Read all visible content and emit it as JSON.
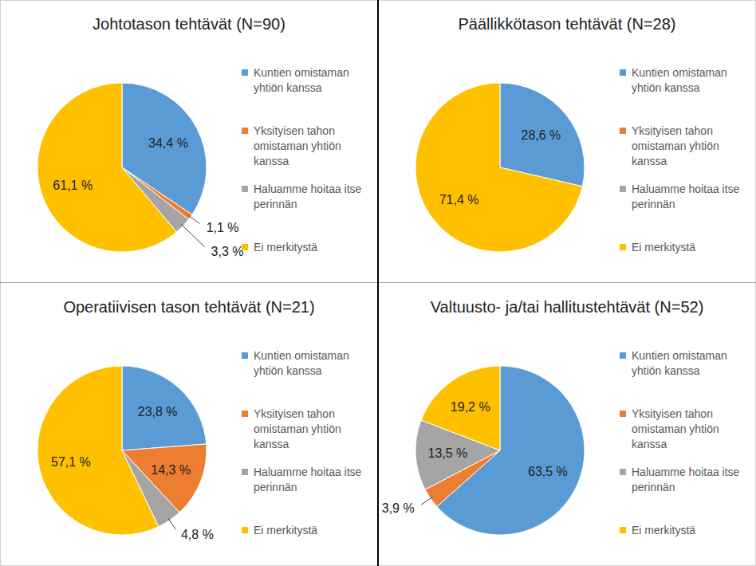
{
  "chart_data": [
    {
      "type": "pie",
      "title": "Johtotason tehtävät (N=90)",
      "categories": [
        "Kuntien omistaman yhtiön kanssa",
        "Yksityisen tahon omistaman yhtiön kanssa",
        "Haluamme hoitaa itse perinnän",
        "Ei merkitystä"
      ],
      "values": [
        34.4,
        1.1,
        3.3,
        61.1
      ],
      "value_labels": [
        "34,4 %",
        "1,1 %",
        "3,3 %",
        "61,1 %"
      ],
      "colors": [
        "#5b9bd5",
        "#ed7d31",
        "#a5a5a5",
        "#ffc000"
      ],
      "data_labels": true,
      "legend": "right"
    },
    {
      "type": "pie",
      "title": "Päällikkötason tehtävät (N=28)",
      "categories": [
        "Kuntien omistaman yhtiön kanssa",
        "Yksityisen tahon omistaman yhtiön kanssa",
        "Haluamme hoitaa itse perinnän",
        "Ei merkitystä"
      ],
      "values": [
        28.6,
        0,
        0,
        71.4
      ],
      "value_labels": [
        "28,6 %",
        null,
        null,
        "71,4 %"
      ],
      "colors": [
        "#5b9bd5",
        "#ed7d31",
        "#a5a5a5",
        "#ffc000"
      ],
      "data_labels": true,
      "legend": "right"
    },
    {
      "type": "pie",
      "title": "Operatiivisen tason tehtävät (N=21)",
      "categories": [
        "Kuntien omistaman yhtiön kanssa",
        "Yksityisen tahon omistaman yhtiön kanssa",
        "Haluamme hoitaa itse perinnän",
        "Ei merkitystä"
      ],
      "values": [
        23.8,
        14.3,
        4.8,
        57.1
      ],
      "value_labels": [
        "23,8 %",
        "14,3 %",
        "4,8 %",
        "57,1 %"
      ],
      "colors": [
        "#5b9bd5",
        "#ed7d31",
        "#a5a5a5",
        "#ffc000"
      ],
      "data_labels": true,
      "legend": "right"
    },
    {
      "type": "pie",
      "title": "Valtuusto- ja/tai hallitustehtävät (N=52)",
      "categories": [
        "Kuntien omistaman yhtiön kanssa",
        "Yksityisen tahon omistaman yhtiön kanssa",
        "Haluamme hoitaa itse perinnän",
        "Ei merkitystä"
      ],
      "values": [
        63.5,
        3.9,
        13.5,
        19.2
      ],
      "value_labels": [
        "63,5 %",
        "3,9 %",
        "13,5 %",
        "19,2 %"
      ],
      "colors": [
        "#5b9bd5",
        "#ed7d31",
        "#a5a5a5",
        "#ffc000"
      ],
      "data_labels": true,
      "legend": "right"
    }
  ]
}
